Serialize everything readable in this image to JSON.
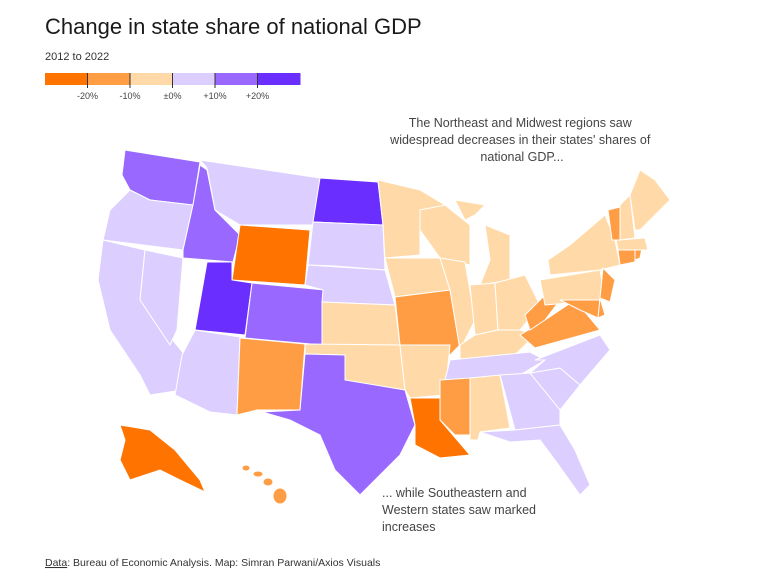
{
  "header": {
    "title": "Change in state share of national GDP",
    "subtitle": "2012 to 2022"
  },
  "legend": {
    "colors": [
      "#ff7300",
      "#ff9d45",
      "#ffdaa8",
      "#dccfff",
      "#9868ff",
      "#6a2eff"
    ],
    "ticks": [
      {
        "value": -20,
        "label": "-20%"
      },
      {
        "value": -10,
        "label": "-10%"
      },
      {
        "value": 0,
        "label": "±0%"
      },
      {
        "value": 10,
        "label": "+10%"
      },
      {
        "value": 20,
        "label": "+20%"
      }
    ]
  },
  "annotations": [
    {
      "lines": [
        "The Northeast and Midwest regions saw",
        "widespread decreases in their states' shares of",
        "national GDP..."
      ]
    },
    {
      "lines": [
        "... while Southeastern and",
        "Western states saw marked",
        "increases"
      ]
    }
  ],
  "source": {
    "label": "Data",
    "text": ": Bureau of Economic Analysis. Map: Simran Parwani/Axios Visuals"
  }
}
